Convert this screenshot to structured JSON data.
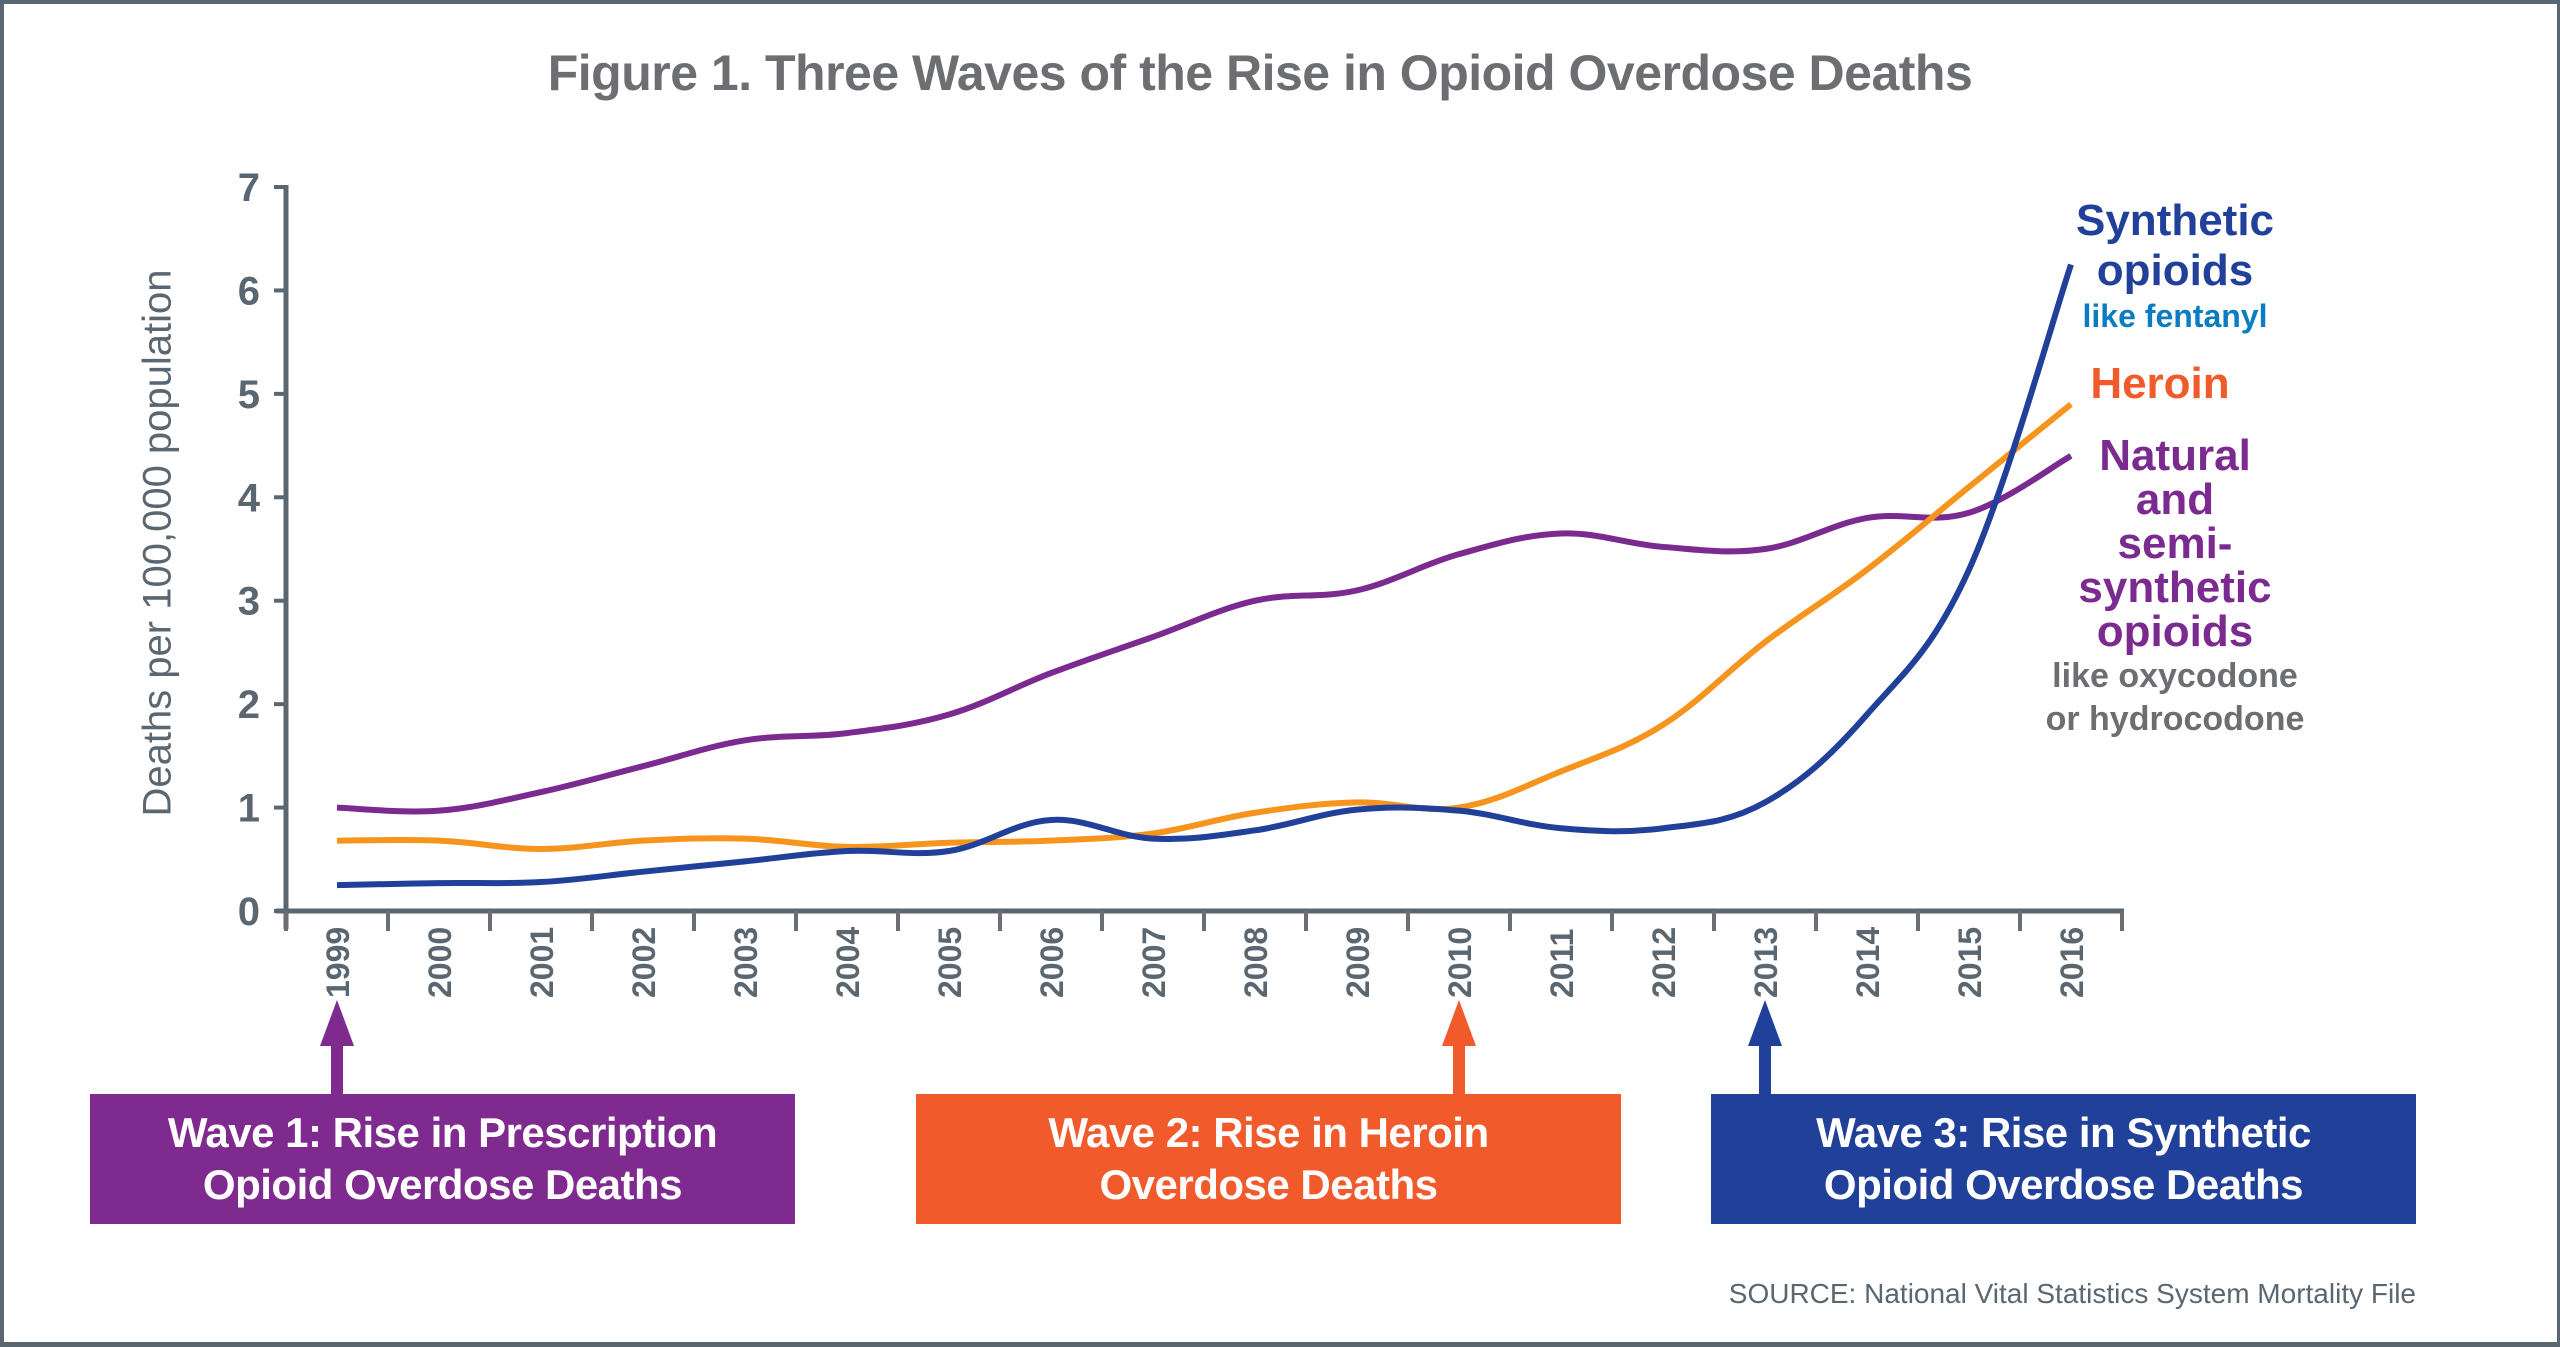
{
  "figure": {
    "title": "Figure 1. Three Waves of the Rise in Opioid Overdose Deaths",
    "source": "SOURCE: National Vital Statistics System Mortality File"
  },
  "series_labels": {
    "synthetic": {
      "main_line1": "Synthetic",
      "main_line2": "opioids",
      "sub": "like fentanyl"
    },
    "heroin": {
      "main": "Heroin"
    },
    "natural": {
      "main_line1": "Natural",
      "main_line2": "and",
      "main_line3": "semi-",
      "main_line4": "synthetic",
      "main_line5": "opioids",
      "sub_line1": "like oxycodone",
      "sub_line2": "or hydrocodone"
    }
  },
  "waves": [
    {
      "line1": "Wave 1: Rise in Prescription",
      "line2": "Opioid Overdose Deaths",
      "year": "1999",
      "color": "#7f2a8e"
    },
    {
      "line1": "Wave 2: Rise in Heroin",
      "line2": "Overdose Deaths",
      "year": "2010",
      "color": "#f15a2b"
    },
    {
      "line1": "Wave 3: Rise in Synthetic",
      "line2": "Opioid Overdose Deaths",
      "year": "2013",
      "color": "#21409a"
    }
  ],
  "chart_data": {
    "type": "line",
    "title": "Figure 1. Three Waves of the Rise in Opioid Overdose Deaths",
    "xlabel": "",
    "ylabel": "Deaths per 100,000 population",
    "ylim": [
      0,
      7
    ],
    "yticks": [
      "0",
      "1",
      "2",
      "3",
      "4",
      "5",
      "6",
      "7"
    ],
    "grid": false,
    "legend": "direct labels at right end of lines",
    "categories": [
      "1999",
      "2000",
      "2001",
      "2002",
      "2003",
      "2004",
      "2005",
      "2006",
      "2007",
      "2008",
      "2009",
      "2010",
      "2011",
      "2012",
      "2013",
      "2014",
      "2015",
      "2016"
    ],
    "series": [
      {
        "name": "Natural and semi-synthetic opioids",
        "color": "#7b2a90",
        "values": [
          1.0,
          0.97,
          1.15,
          1.4,
          1.65,
          1.72,
          1.9,
          2.3,
          2.65,
          3.0,
          3.1,
          3.45,
          3.65,
          3.52,
          3.5,
          3.8,
          3.85,
          4.4
        ]
      },
      {
        "name": "Heroin",
        "color": "#f7941d",
        "values": [
          0.68,
          0.68,
          0.6,
          0.68,
          0.7,
          0.62,
          0.66,
          0.68,
          0.75,
          0.95,
          1.05,
          1.0,
          1.35,
          1.8,
          2.6,
          3.3,
          4.1,
          4.9
        ]
      },
      {
        "name": "Synthetic opioids",
        "color": "#21409a",
        "values": [
          0.25,
          0.27,
          0.28,
          0.38,
          0.48,
          0.58,
          0.58,
          0.88,
          0.7,
          0.78,
          0.98,
          0.97,
          0.8,
          0.8,
          1.05,
          1.9,
          3.3,
          6.25
        ]
      }
    ],
    "annotations": [
      "Wave 1: Rise in Prescription Opioid Overdose Deaths (1999)",
      "Wave 2: Rise in Heroin Overdose Deaths (2010)",
      "Wave 3: Rise in Synthetic Opioid Overdose Deaths (2013)"
    ],
    "source": "SOURCE: National Vital Statistics System Mortality File"
  }
}
